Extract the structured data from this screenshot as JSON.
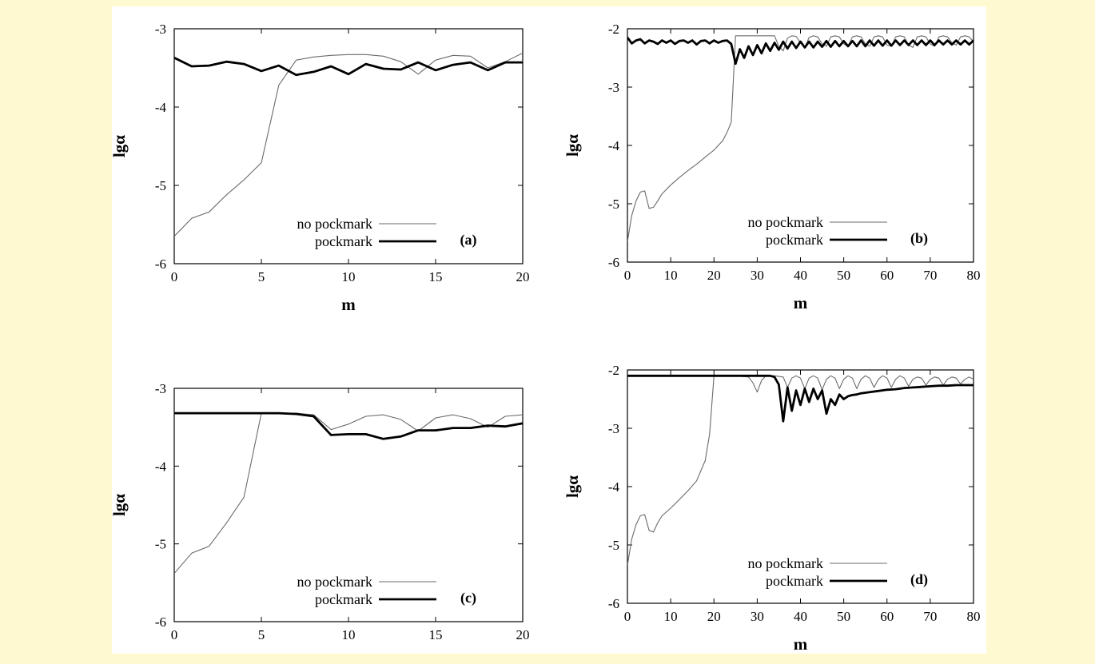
{
  "colors": {
    "background": "#fff9d1",
    "figure": "#ffffff",
    "ink": "#000000",
    "thin_line": "#6a6a6a"
  },
  "chart_data": [
    {
      "type": "line",
      "panel_label": "(a)",
      "xlabel": "m",
      "ylabel": "lgα",
      "xlim": [
        0,
        20
      ],
      "ylim": [
        -6,
        -3
      ],
      "xticks": [
        "0",
        "5",
        "10",
        "15",
        "20"
      ],
      "yticks": [
        "-3",
        "-4",
        "-5",
        "-6"
      ],
      "legend_placement": "bottom-right",
      "series": [
        {
          "name": "no pockmark",
          "style": "thin",
          "x": [
            0,
            1,
            2,
            3,
            4,
            5,
            6,
            7,
            8,
            9,
            10,
            11,
            12,
            13,
            14,
            15,
            16,
            17,
            18,
            19,
            20
          ],
          "y": [
            -5.65,
            -5.42,
            -5.34,
            -5.12,
            -4.93,
            -4.71,
            -3.72,
            -3.4,
            -3.36,
            -3.34,
            -3.33,
            -3.33,
            -3.35,
            -3.42,
            -3.58,
            -3.4,
            -3.34,
            -3.35,
            -3.5,
            -3.42,
            -3.31
          ]
        },
        {
          "name": "pockmark",
          "style": "thick",
          "x": [
            0,
            1,
            2,
            3,
            4,
            5,
            6,
            7,
            8,
            9,
            10,
            11,
            12,
            13,
            14,
            15,
            16,
            17,
            18,
            19,
            20
          ],
          "y": [
            -3.37,
            -3.48,
            -3.47,
            -3.42,
            -3.45,
            -3.54,
            -3.47,
            -3.59,
            -3.55,
            -3.48,
            -3.58,
            -3.45,
            -3.51,
            -3.52,
            -3.43,
            -3.53,
            -3.46,
            -3.43,
            -3.53,
            -3.43,
            -3.43
          ]
        }
      ]
    },
    {
      "type": "line",
      "panel_label": "(b)",
      "xlabel": "m",
      "ylabel": "lgα",
      "xlim": [
        0,
        80
      ],
      "ylim": [
        -6,
        -2
      ],
      "xticks": [
        "0",
        "10",
        "20",
        "30",
        "40",
        "50",
        "60",
        "70",
        "80"
      ],
      "yticks": [
        "-2",
        "-3",
        "-4",
        "-5",
        "-6"
      ],
      "legend_placement": "bottom-right",
      "series": [
        {
          "name": "no pockmark",
          "style": "thin",
          "x": [
            0,
            1,
            2,
            3,
            4,
            5,
            6,
            7,
            8,
            10,
            12,
            14,
            16,
            18,
            20,
            22,
            23,
            24,
            25,
            26,
            30,
            33,
            34,
            35,
            36,
            37,
            38,
            39,
            40,
            41,
            42,
            43,
            44,
            45,
            46,
            47,
            48,
            49,
            50,
            51,
            52,
            53,
            54,
            55,
            56,
            57,
            58,
            59,
            60,
            61,
            62,
            63,
            64,
            65,
            66,
            67,
            68,
            69,
            70,
            71,
            72,
            73,
            74,
            75,
            76,
            77,
            78,
            79,
            80
          ],
          "y": [
            -5.65,
            -5.2,
            -4.95,
            -4.8,
            -4.78,
            -5.08,
            -5.06,
            -4.95,
            -4.83,
            -4.68,
            -4.55,
            -4.43,
            -4.32,
            -4.2,
            -4.08,
            -3.92,
            -3.78,
            -3.6,
            -2.12,
            -2.12,
            -2.12,
            -2.12,
            -2.12,
            -2.3,
            -2.38,
            -2.16,
            -2.12,
            -2.13,
            -2.24,
            -2.32,
            -2.15,
            -2.12,
            -2.14,
            -2.26,
            -2.3,
            -2.14,
            -2.12,
            -2.14,
            -2.26,
            -2.3,
            -2.14,
            -2.12,
            -2.14,
            -2.26,
            -2.3,
            -2.14,
            -2.12,
            -2.14,
            -2.28,
            -2.3,
            -2.14,
            -2.12,
            -2.14,
            -2.28,
            -2.32,
            -2.14,
            -2.12,
            -2.14,
            -2.26,
            -2.3,
            -2.14,
            -2.12,
            -2.14,
            -2.24,
            -2.28,
            -2.14,
            -2.12,
            -2.14,
            -2.22
          ]
        },
        {
          "name": "pockmark",
          "style": "thick",
          "x": [
            0,
            1,
            2,
            3,
            4,
            5,
            6,
            7,
            8,
            9,
            10,
            11,
            12,
            13,
            14,
            15,
            16,
            17,
            18,
            19,
            20,
            21,
            22,
            23,
            24,
            25,
            26,
            27,
            28,
            29,
            30,
            31,
            32,
            33,
            34,
            35,
            36,
            37,
            38,
            39,
            40,
            41,
            42,
            43,
            44,
            45,
            46,
            47,
            48,
            49,
            50,
            51,
            52,
            53,
            54,
            55,
            56,
            57,
            58,
            59,
            60,
            61,
            62,
            63,
            64,
            65,
            66,
            67,
            68,
            69,
            70,
            71,
            72,
            73,
            74,
            75,
            76,
            77,
            78,
            79,
            80
          ],
          "y": [
            -2.15,
            -2.25,
            -2.2,
            -2.18,
            -2.25,
            -2.2,
            -2.22,
            -2.26,
            -2.2,
            -2.24,
            -2.2,
            -2.26,
            -2.21,
            -2.2,
            -2.24,
            -2.2,
            -2.27,
            -2.21,
            -2.2,
            -2.25,
            -2.2,
            -2.24,
            -2.21,
            -2.2,
            -2.26,
            -2.6,
            -2.35,
            -2.5,
            -2.3,
            -2.45,
            -2.28,
            -2.42,
            -2.25,
            -2.38,
            -2.24,
            -2.36,
            -2.22,
            -2.34,
            -2.22,
            -2.33,
            -2.22,
            -2.32,
            -2.22,
            -2.32,
            -2.22,
            -2.31,
            -2.21,
            -2.31,
            -2.21,
            -2.3,
            -2.21,
            -2.3,
            -2.21,
            -2.3,
            -2.2,
            -2.3,
            -2.2,
            -2.29,
            -2.2,
            -2.29,
            -2.2,
            -2.29,
            -2.2,
            -2.28,
            -2.2,
            -2.28,
            -2.2,
            -2.28,
            -2.2,
            -2.28,
            -2.2,
            -2.28,
            -2.2,
            -2.27,
            -2.2,
            -2.27,
            -2.2,
            -2.27,
            -2.2,
            -2.27,
            -2.2
          ]
        }
      ]
    },
    {
      "type": "line",
      "panel_label": "(c)",
      "xlabel": "m",
      "ylabel": "lgα",
      "xlim": [
        0,
        20
      ],
      "ylim": [
        -6,
        -3
      ],
      "xticks": [
        "0",
        "5",
        "10",
        "15",
        "20"
      ],
      "yticks": [
        "-3",
        "-4",
        "-5",
        "-6"
      ],
      "legend_placement": "bottom-right",
      "series": [
        {
          "name": "no pockmark",
          "style": "thin",
          "x": [
            0,
            1,
            2,
            3,
            4,
            5,
            6,
            7,
            8,
            9,
            10,
            11,
            12,
            13,
            14,
            15,
            16,
            17,
            18,
            19,
            20
          ],
          "y": [
            -5.38,
            -5.12,
            -5.03,
            -4.73,
            -4.4,
            -3.32,
            -3.32,
            -3.32,
            -3.34,
            -3.53,
            -3.46,
            -3.36,
            -3.34,
            -3.4,
            -3.55,
            -3.38,
            -3.34,
            -3.39,
            -3.5,
            -3.36,
            -3.34
          ]
        },
        {
          "name": "pockmark",
          "style": "thick",
          "x": [
            0,
            1,
            2,
            3,
            4,
            5,
            6,
            7,
            8,
            9,
            10,
            11,
            12,
            13,
            14,
            15,
            16,
            17,
            18,
            19,
            20
          ],
          "y": [
            -3.32,
            -3.32,
            -3.32,
            -3.32,
            -3.32,
            -3.32,
            -3.32,
            -3.33,
            -3.36,
            -3.6,
            -3.59,
            -3.59,
            -3.65,
            -3.62,
            -3.54,
            -3.54,
            -3.51,
            -3.51,
            -3.48,
            -3.49,
            -3.45
          ]
        }
      ]
    },
    {
      "type": "line",
      "panel_label": "(d)",
      "xlabel": "m",
      "ylabel": "lgα",
      "xlim": [
        0,
        80
      ],
      "ylim": [
        -6,
        -2
      ],
      "xticks": [
        "0",
        "10",
        "20",
        "30",
        "40",
        "50",
        "60",
        "70",
        "80"
      ],
      "yticks": [
        "-2",
        "-3",
        "-4",
        "-5",
        "-6"
      ],
      "legend_placement": "bottom-right",
      "series": [
        {
          "name": "no pockmark",
          "style": "thin",
          "x": [
            0,
            1,
            2,
            3,
            4,
            5,
            6,
            7,
            8,
            10,
            12,
            14,
            16,
            18,
            19,
            20,
            22,
            25,
            28,
            29,
            30,
            31,
            32,
            34,
            36,
            37,
            38,
            39,
            40,
            41,
            42,
            43,
            44,
            45,
            46,
            47,
            48,
            49,
            50,
            51,
            52,
            53,
            54,
            55,
            56,
            57,
            58,
            59,
            60,
            61,
            62,
            63,
            64,
            65,
            66,
            67,
            68,
            69,
            70,
            71,
            72,
            73,
            74,
            75,
            76,
            77,
            78,
            79,
            80
          ],
          "y": [
            -5.35,
            -4.9,
            -4.65,
            -4.5,
            -4.48,
            -4.75,
            -4.78,
            -4.62,
            -4.5,
            -4.37,
            -4.22,
            -4.07,
            -3.9,
            -3.55,
            -3.1,
            -2.1,
            -2.1,
            -2.1,
            -2.12,
            -2.22,
            -2.38,
            -2.18,
            -2.1,
            -2.1,
            -2.12,
            -2.3,
            -2.14,
            -2.1,
            -2.14,
            -2.32,
            -2.14,
            -2.1,
            -2.14,
            -2.34,
            -2.16,
            -2.1,
            -2.14,
            -2.32,
            -2.16,
            -2.1,
            -2.14,
            -2.32,
            -2.16,
            -2.1,
            -2.14,
            -2.3,
            -2.16,
            -2.1,
            -2.14,
            -2.3,
            -2.16,
            -2.1,
            -2.14,
            -2.28,
            -2.16,
            -2.12,
            -2.14,
            -2.26,
            -2.16,
            -2.12,
            -2.14,
            -2.26,
            -2.16,
            -2.12,
            -2.14,
            -2.24,
            -2.16,
            -2.12,
            -2.16
          ]
        },
        {
          "name": "pockmark",
          "style": "thick",
          "x": [
            0,
            5,
            10,
            15,
            20,
            25,
            30,
            33,
            34,
            35,
            36,
            37,
            38,
            39,
            40,
            41,
            42,
            43,
            44,
            45,
            46,
            47,
            48,
            49,
            50,
            51,
            52,
            53,
            54,
            56,
            58,
            60,
            62,
            64,
            66,
            68,
            70,
            72,
            74,
            76,
            78,
            80
          ],
          "y": [
            -2.1,
            -2.1,
            -2.1,
            -2.1,
            -2.1,
            -2.1,
            -2.1,
            -2.1,
            -2.12,
            -2.25,
            -2.88,
            -2.3,
            -2.7,
            -2.35,
            -2.6,
            -2.32,
            -2.55,
            -2.32,
            -2.5,
            -2.35,
            -2.75,
            -2.5,
            -2.6,
            -2.42,
            -2.5,
            -2.45,
            -2.43,
            -2.42,
            -2.4,
            -2.38,
            -2.36,
            -2.34,
            -2.33,
            -2.31,
            -2.3,
            -2.29,
            -2.28,
            -2.27,
            -2.27,
            -2.26,
            -2.26,
            -2.26
          ]
        }
      ]
    }
  ]
}
